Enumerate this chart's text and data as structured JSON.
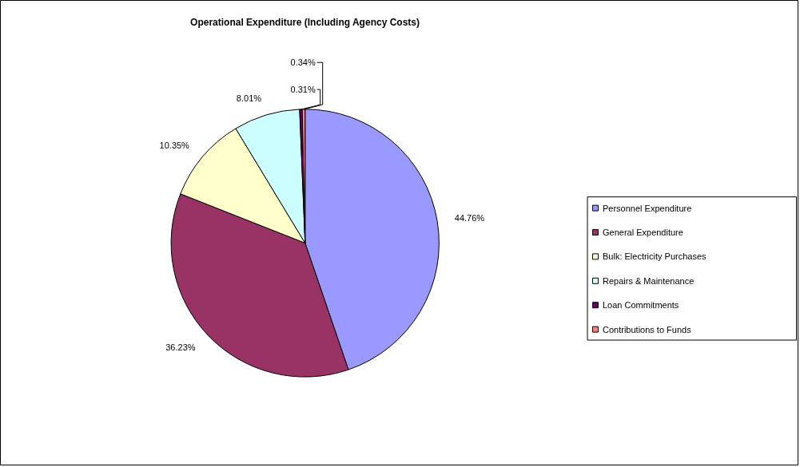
{
  "chart_data": {
    "type": "pie",
    "title": "Operational Expenditure (Including Agency Costs)",
    "categories": [
      "Personnel Expenditure",
      "General Expenditure",
      "Bulk: Electricity Purchases",
      "Repairs & Maintenance",
      "Loan Commitments",
      "Contributions to Funds"
    ],
    "values": [
      44.76,
      36.23,
      10.35,
      8.01,
      0.31,
      0.34
    ],
    "colors": [
      "#9999ff",
      "#993366",
      "#ffffcc",
      "#ccffff",
      "#660066",
      "#ff8080"
    ],
    "value_labels": [
      "44.76%",
      "36.23%",
      "10.35%",
      "8.01%",
      "0.31%",
      "0.34%"
    ],
    "legend": "right"
  }
}
